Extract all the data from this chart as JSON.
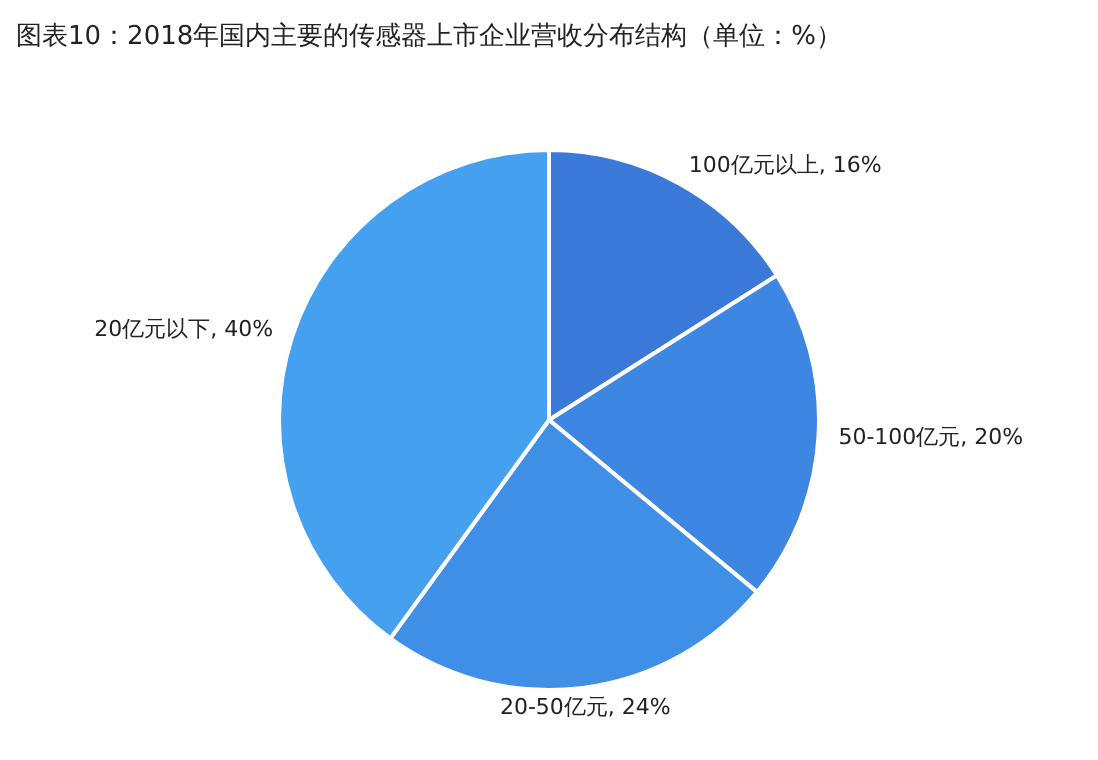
{
  "chart_data": {
    "type": "pie",
    "title": "图表10：2018年国内主要的传感器上市企业营收分布结构（单位：%）",
    "categories": [
      "100亿元以上",
      "50-100亿元",
      "20-50亿元",
      "20亿元以下"
    ],
    "values": [
      16,
      20,
      24,
      40
    ],
    "value_labels": [
      "16%",
      "20%",
      "24%",
      "40%"
    ],
    "colors": [
      "#3b79d9",
      "#3d86e1",
      "#3f8fe7",
      "#45a0ef"
    ],
    "legend": false
  }
}
